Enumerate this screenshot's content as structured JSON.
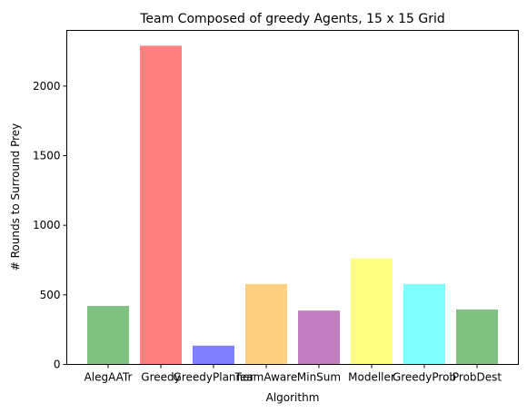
{
  "chart_data": {
    "type": "bar",
    "title": "Team Composed of greedy Agents, 15 x 15 Grid",
    "xlabel": "Algorithm",
    "ylabel": "# Rounds to Surround Prey",
    "ylim": [
      0,
      2400
    ],
    "yticks": [
      0,
      500,
      1000,
      1500,
      2000
    ],
    "grid": false,
    "categories": [
      "AlegAATr",
      "Greedy",
      "GreedyPlanner",
      "TeamAware",
      "MinSum",
      "Modeller",
      "GreedyProb",
      "ProbDest"
    ],
    "values": [
      420,
      2290,
      135,
      578,
      387,
      762,
      578,
      395
    ],
    "colors": [
      "#80c080",
      "#ff8080",
      "#8080ff",
      "#ffd080",
      "#c080c0",
      "#ffff80",
      "#80ffff",
      "#80c080"
    ]
  }
}
